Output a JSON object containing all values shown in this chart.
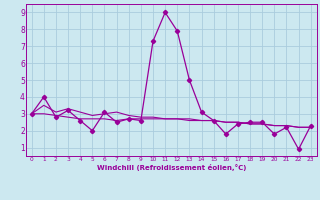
{
  "xlabel": "Windchill (Refroidissement éolien,°C)",
  "xlim": [
    -0.5,
    23.5
  ],
  "ylim": [
    0.5,
    9.5
  ],
  "xtick_labels": [
    "0",
    "1",
    "2",
    "3",
    "4",
    "5",
    "6",
    "7",
    "8",
    "9",
    "10",
    "11",
    "12",
    "13",
    "14",
    "15",
    "16",
    "17",
    "18",
    "19",
    "20",
    "21",
    "22",
    "23"
  ],
  "xticks": [
    0,
    1,
    2,
    3,
    4,
    5,
    6,
    7,
    8,
    9,
    10,
    11,
    12,
    13,
    14,
    15,
    16,
    17,
    18,
    19,
    20,
    21,
    22,
    23
  ],
  "yticks": [
    1,
    2,
    3,
    4,
    5,
    6,
    7,
    8,
    9
  ],
  "bg_color": "#cce8f0",
  "line_color": "#990099",
  "grid_color": "#aaccdd",
  "series_main": [
    3.0,
    4.0,
    2.8,
    3.2,
    2.6,
    2.0,
    3.1,
    2.5,
    2.7,
    2.6,
    7.3,
    9.0,
    7.9,
    5.0,
    3.1,
    2.6,
    1.8,
    2.4,
    2.5,
    2.5,
    1.8,
    2.2,
    0.9,
    2.3
  ],
  "series_trend1": [
    3.0,
    3.5,
    3.1,
    3.3,
    3.1,
    2.9,
    3.0,
    3.1,
    2.9,
    2.8,
    2.8,
    2.7,
    2.7,
    2.7,
    2.6,
    2.6,
    2.5,
    2.5,
    2.4,
    2.4,
    2.3,
    2.3,
    2.2,
    2.2
  ],
  "series_trend2": [
    3.0,
    3.0,
    2.9,
    2.8,
    2.7,
    2.7,
    2.7,
    2.6,
    2.7,
    2.7,
    2.7,
    2.7,
    2.7,
    2.6,
    2.6,
    2.6,
    2.5,
    2.5,
    2.4,
    2.4,
    2.3,
    2.3,
    2.2,
    2.2
  ],
  "figsize": [
    3.2,
    2.0
  ],
  "dpi": 100
}
